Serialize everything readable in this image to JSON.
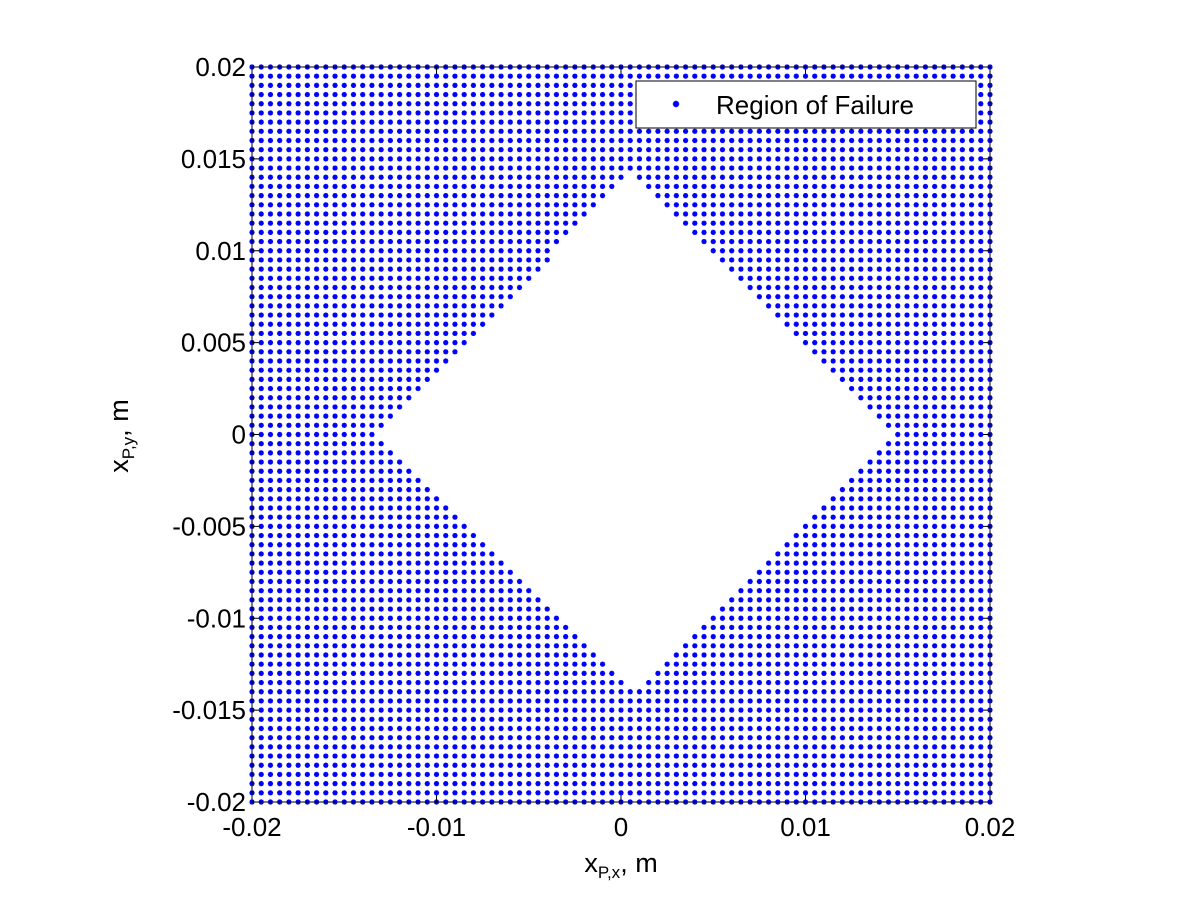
{
  "chart_data": {
    "type": "scatter",
    "title": "",
    "xlabel": {
      "base": "x",
      "sub": "P,x",
      "suffix": ", m"
    },
    "ylabel": {
      "base": "x",
      "sub": "P,y",
      "suffix": ", m"
    },
    "xlim": [
      -0.02,
      0.02
    ],
    "ylim": [
      -0.02,
      0.02
    ],
    "xticks": [
      -0.02,
      -0.01,
      0,
      0.01,
      0.02
    ],
    "xtick_labels": [
      "-0.02",
      "-0.01",
      "0",
      "0.01",
      "0.02"
    ],
    "yticks": [
      -0.02,
      -0.015,
      -0.01,
      -0.005,
      0,
      0.005,
      0.01,
      0.015,
      0.02
    ],
    "ytick_labels": [
      "-0.02",
      "-0.015",
      "-0.01",
      "-0.005",
      "0",
      "0.005",
      "0.01",
      "0.015",
      "0.02"
    ],
    "grid": false,
    "legend": {
      "position": "top-right",
      "entries": [
        "Region of Failure"
      ]
    },
    "series": [
      {
        "name": "Region of Failure",
        "color": "#0000ff",
        "marker": "*",
        "grid_step": 0.0005,
        "x_range": [
          -0.02,
          0.02
        ],
        "y_range": [
          -0.02,
          0.02
        ],
        "safe_region": {
          "shape": "diamond",
          "center": [
            0.0007,
            0
          ],
          "left_vertex_x": -0.0133,
          "right_vertex_x": 0.0147,
          "top_vertex_y": 0.0143,
          "bottom_vertex_y": -0.0138
        }
      }
    ]
  }
}
